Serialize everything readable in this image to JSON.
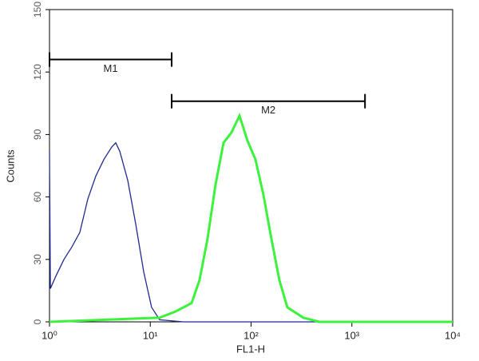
{
  "chart_data": {
    "type": "line",
    "xlabel": "FL1-H",
    "ylabel": "Counts",
    "xscale": "log",
    "xlim": [
      1,
      10000
    ],
    "xticks": [
      {
        "value": 1,
        "label": "10⁰"
      },
      {
        "value": 10,
        "label": "10¹"
      },
      {
        "value": 100,
        "label": "10²"
      },
      {
        "value": 1000,
        "label": "10³"
      },
      {
        "value": 10000,
        "label": "10⁴"
      }
    ],
    "ylim": [
      0,
      150
    ],
    "yticks": [
      0,
      30,
      60,
      90,
      120,
      150
    ],
    "series": [
      {
        "color": "#1f2b8f",
        "x": [
          1,
          1.02,
          1.157,
          1.39,
          1.667,
          2.0,
          2.4,
          2.88,
          3.46,
          4.15,
          4.54,
          4.98,
          5.97,
          7.17,
          8.6,
          10.3,
          12.4,
          21.4,
          10000
        ],
        "values": [
          82,
          16,
          22,
          30,
          36,
          43,
          59,
          70,
          78,
          84,
          86,
          82,
          68,
          47,
          24,
          7,
          1,
          0,
          0
        ]
      },
      {
        "color": "#3df23d",
        "x": [
          1,
          12.4,
          17.8,
          25.7,
          30.8,
          37.0,
          44.4,
          53.3,
          64.0,
          76.8,
          92.1,
          110.6,
          132.7,
          159,
          191,
          229,
          330,
          475,
          10000
        ],
        "values": [
          0,
          2,
          5,
          9,
          20,
          40,
          66,
          86,
          91,
          99,
          87,
          78,
          61,
          40,
          20,
          7,
          2,
          0,
          0
        ]
      }
    ],
    "markers": [
      {
        "label": "M1",
        "x": [
          1,
          16.3
        ],
        "y": 126
      },
      {
        "label": "M2",
        "x": [
          16.3,
          1350
        ],
        "y": 106
      }
    ]
  }
}
